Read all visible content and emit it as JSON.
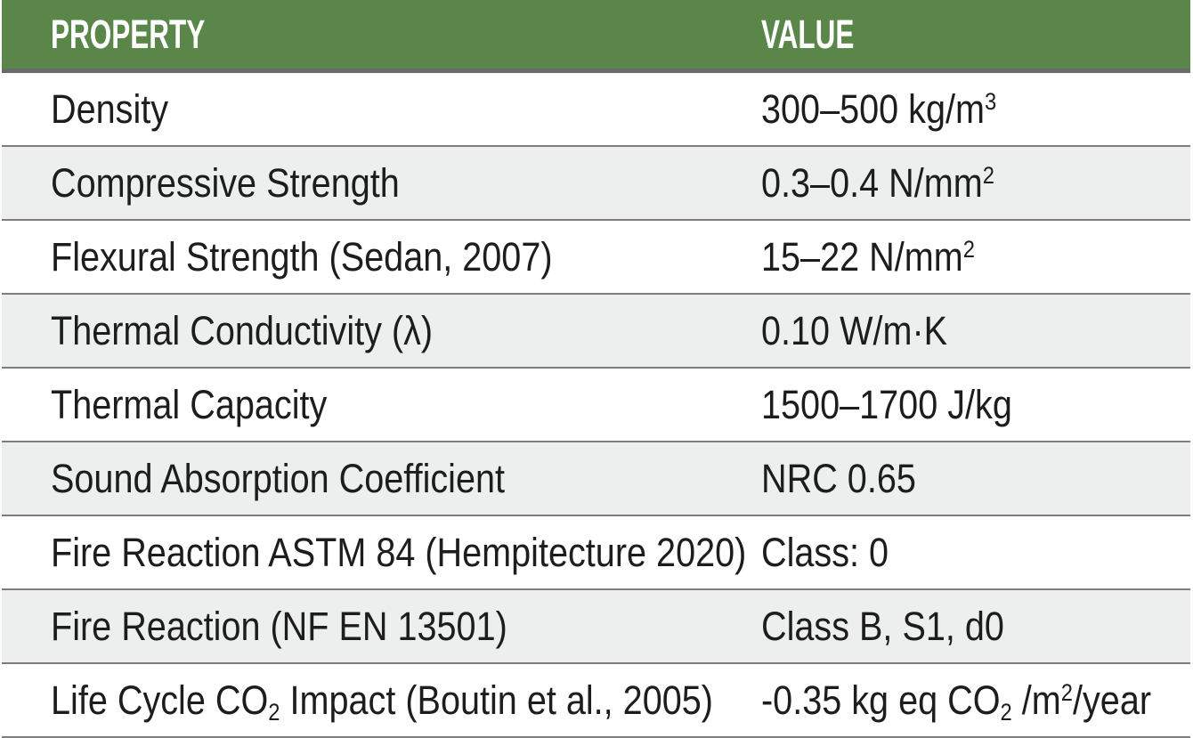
{
  "table": {
    "title": "material-properties-table",
    "header": {
      "property_label": "PROPERTY",
      "value_label": "VALUE"
    },
    "rows": [
      {
        "property": "Density",
        "value": "300–500 kg/m^{3}"
      },
      {
        "property": "Compressive Strength",
        "value": "0.3–0.4 N/mm^{2}"
      },
      {
        "property": "Flexural Strength (Sedan, 2007)",
        "value": "15–22 N/mm^{2}"
      },
      {
        "property": "Thermal Conductivity (λ)",
        "value": "0.10 W/m·K"
      },
      {
        "property": "Thermal Capacity",
        "value": "1500–1700 J/kg"
      },
      {
        "property": "Sound Absorption Coefficient",
        "value": "NRC 0.65"
      },
      {
        "property": "Fire Reaction ASTM 84 (Hempitecture 2020)",
        "value": "Class: 0"
      },
      {
        "property": "Fire Reaction (NF EN 13501)",
        "value": "Class B, S1, d0"
      },
      {
        "property": "Life Cycle CO_{2} Impact (Boutin et al., 2005)",
        "value": "-0.35 kg eq CO_{2} /m^{2}/year"
      }
    ],
    "colors": {
      "header_bg": "#5a8749",
      "header_text": "#ffffff",
      "header_rule": "#6a6a6a",
      "row_bg": "#ffffff",
      "row_alt_bg": "#edefee",
      "row_rule": "#7d7d7d",
      "body_text": "#1d1d1d"
    }
  }
}
